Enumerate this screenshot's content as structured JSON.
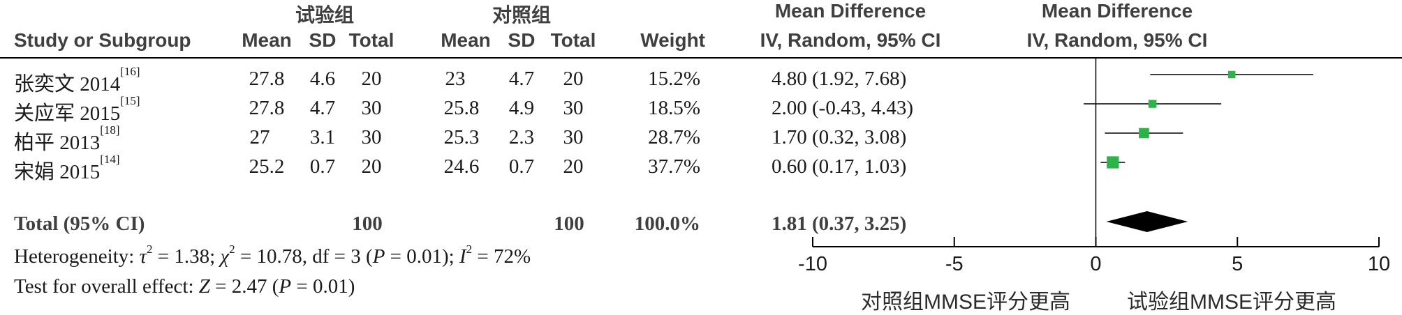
{
  "header": {
    "group_exp": "试验组",
    "group_ctrl": "对照组",
    "md_top": "Mean Difference",
    "md_sub": "IV, Random, 95% CI",
    "plot_top": "Mean Difference",
    "plot_sub": "IV, Random, 95% CI",
    "study": "Study or Subgroup",
    "mean": "Mean",
    "sd": "SD",
    "total": "Total",
    "weight": "Weight"
  },
  "studies": [
    {
      "name": "张奕文 2014",
      "ref": "[16]",
      "exp_mean": "27.8",
      "exp_sd": "4.6",
      "exp_total": "20",
      "ctrl_mean": "23",
      "ctrl_sd": "4.7",
      "ctrl_total": "20",
      "weight": "15.2%",
      "ci": "4.80 (1.92, 7.68)"
    },
    {
      "name": "关应军 2015",
      "ref": "[15]",
      "exp_mean": "27.8",
      "exp_sd": "4.7",
      "exp_total": "30",
      "ctrl_mean": "25.8",
      "ctrl_sd": "4.9",
      "ctrl_total": "30",
      "weight": "18.5%",
      "ci": "2.00 (-0.43, 4.43)"
    },
    {
      "name": "柏平 2013",
      "ref": "[18]",
      "exp_mean": "27",
      "exp_sd": "3.1",
      "exp_total": "30",
      "ctrl_mean": "25.3",
      "ctrl_sd": "2.3",
      "ctrl_total": "30",
      "weight": "28.7%",
      "ci": "1.70 (0.32, 3.08)"
    },
    {
      "name": "宋娟 2015",
      "ref": "[14]",
      "exp_mean": "25.2",
      "exp_sd": "0.7",
      "exp_total": "20",
      "ctrl_mean": "24.6",
      "ctrl_sd": "0.7",
      "ctrl_total": "20",
      "weight": "37.7%",
      "ci": "0.60 (0.17, 1.03)"
    }
  ],
  "total": {
    "label": "Total (95% CI)",
    "exp_total": "100",
    "ctrl_total": "100",
    "weight": "100.0%",
    "ci": "1.81 (0.37, 3.25)"
  },
  "heterogeneity": {
    "prefix": "Heterogeneity: ",
    "tau_sym": "τ",
    "tau_rest": " = 1.38; ",
    "chi_sym": "χ",
    "chi_rest": " = 10.78, df = 3 (",
    "p_sym": "P",
    "p_rest": " = 0.01); ",
    "i_sym": "I",
    "i_rest": " = 72%"
  },
  "overall": {
    "prefix": "Test for overall effect: ",
    "z_sym": "Z",
    "z_rest": " = 2.47 (",
    "p_sym": "P",
    "p_rest": " = 0.01)"
  },
  "axis_labels": {
    "left": "对照组MMSE评分更高",
    "right": "试验组MMSE评分更高"
  },
  "colors": {
    "square": "#2db34a",
    "diamond": "#000000",
    "line": "#000000"
  },
  "chart_data": {
    "type": "forest",
    "xlim": [
      -10,
      10
    ],
    "ticks": [
      -10,
      -5,
      0,
      5,
      10
    ],
    "tick_labels": [
      "-10",
      "-5",
      "0",
      "5",
      "10"
    ],
    "studies": [
      {
        "label": "张奕文 2014",
        "md": 4.8,
        "lo": 1.92,
        "hi": 7.68,
        "weight": 15.2
      },
      {
        "label": "关应军 2015",
        "md": 2.0,
        "lo": -0.43,
        "hi": 4.43,
        "weight": 18.5
      },
      {
        "label": "柏平 2013",
        "md": 1.7,
        "lo": 0.32,
        "hi": 3.08,
        "weight": 28.7
      },
      {
        "label": "宋娟 2015",
        "md": 0.6,
        "lo": 0.17,
        "hi": 1.03,
        "weight": 37.7
      }
    ],
    "pooled": {
      "md": 1.81,
      "lo": 0.37,
      "hi": 3.25
    }
  }
}
